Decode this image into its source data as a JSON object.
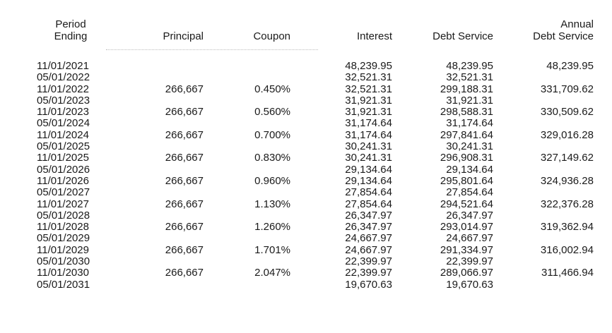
{
  "headers": {
    "period_line1": "Period",
    "period_line2": "Ending",
    "principal": "Principal",
    "coupon": "Coupon",
    "interest": "Interest",
    "debt_service": "Debt Service",
    "annual_line1": "Annual",
    "annual_line2": "Debt Service"
  },
  "rows": [
    {
      "date": "11/01/2021",
      "principal": "",
      "coupon": "",
      "interest": "48,239.95",
      "debt_service": "48,239.95",
      "annual": "48,239.95"
    },
    {
      "date": "05/01/2022",
      "principal": "",
      "coupon": "",
      "interest": "32,521.31",
      "debt_service": "32,521.31",
      "annual": ""
    },
    {
      "date": "11/01/2022",
      "principal": "266,667",
      "coupon": "0.450%",
      "interest": "32,521.31",
      "debt_service": "299,188.31",
      "annual": "331,709.62"
    },
    {
      "date": "05/01/2023",
      "principal": "",
      "coupon": "",
      "interest": "31,921.31",
      "debt_service": "31,921.31",
      "annual": ""
    },
    {
      "date": "11/01/2023",
      "principal": "266,667",
      "coupon": "0.560%",
      "interest": "31,921.31",
      "debt_service": "298,588.31",
      "annual": "330,509.62"
    },
    {
      "date": "05/01/2024",
      "principal": "",
      "coupon": "",
      "interest": "31,174.64",
      "debt_service": "31,174.64",
      "annual": ""
    },
    {
      "date": "11/01/2024",
      "principal": "266,667",
      "coupon": "0.700%",
      "interest": "31,174.64",
      "debt_service": "297,841.64",
      "annual": "329,016.28"
    },
    {
      "date": "05/01/2025",
      "principal": "",
      "coupon": "",
      "interest": "30,241.31",
      "debt_service": "30,241.31",
      "annual": ""
    },
    {
      "date": "11/01/2025",
      "principal": "266,667",
      "coupon": "0.830%",
      "interest": "30,241.31",
      "debt_service": "296,908.31",
      "annual": "327,149.62"
    },
    {
      "date": "05/01/2026",
      "principal": "",
      "coupon": "",
      "interest": "29,134.64",
      "debt_service": "29,134.64",
      "annual": ""
    },
    {
      "date": "11/01/2026",
      "principal": "266,667",
      "coupon": "0.960%",
      "interest": "29,134.64",
      "debt_service": "295,801.64",
      "annual": "324,936.28"
    },
    {
      "date": "05/01/2027",
      "principal": "",
      "coupon": "",
      "interest": "27,854.64",
      "debt_service": "27,854.64",
      "annual": ""
    },
    {
      "date": "11/01/2027",
      "principal": "266,667",
      "coupon": "1.130%",
      "interest": "27,854.64",
      "debt_service": "294,521.64",
      "annual": "322,376.28"
    },
    {
      "date": "05/01/2028",
      "principal": "",
      "coupon": "",
      "interest": "26,347.97",
      "debt_service": "26,347.97",
      "annual": ""
    },
    {
      "date": "11/01/2028",
      "principal": "266,667",
      "coupon": "1.260%",
      "interest": "26,347.97",
      "debt_service": "293,014.97",
      "annual": "319,362.94"
    },
    {
      "date": "05/01/2029",
      "principal": "",
      "coupon": "",
      "interest": "24,667.97",
      "debt_service": "24,667.97",
      "annual": ""
    },
    {
      "date": "11/01/2029",
      "principal": "266,667",
      "coupon": "1.701%",
      "interest": "24,667.97",
      "debt_service": "291,334.97",
      "annual": "316,002.94"
    },
    {
      "date": "05/01/2030",
      "principal": "",
      "coupon": "",
      "interest": "22,399.97",
      "debt_service": "22,399.97",
      "annual": ""
    },
    {
      "date": "11/01/2030",
      "principal": "266,667",
      "coupon": "2.047%",
      "interest": "22,399.97",
      "debt_service": "289,066.97",
      "annual": "311,466.94"
    },
    {
      "date": "05/01/2031",
      "principal": "",
      "coupon": "",
      "interest": "19,670.63",
      "debt_service": "19,670.63",
      "annual": ""
    }
  ]
}
